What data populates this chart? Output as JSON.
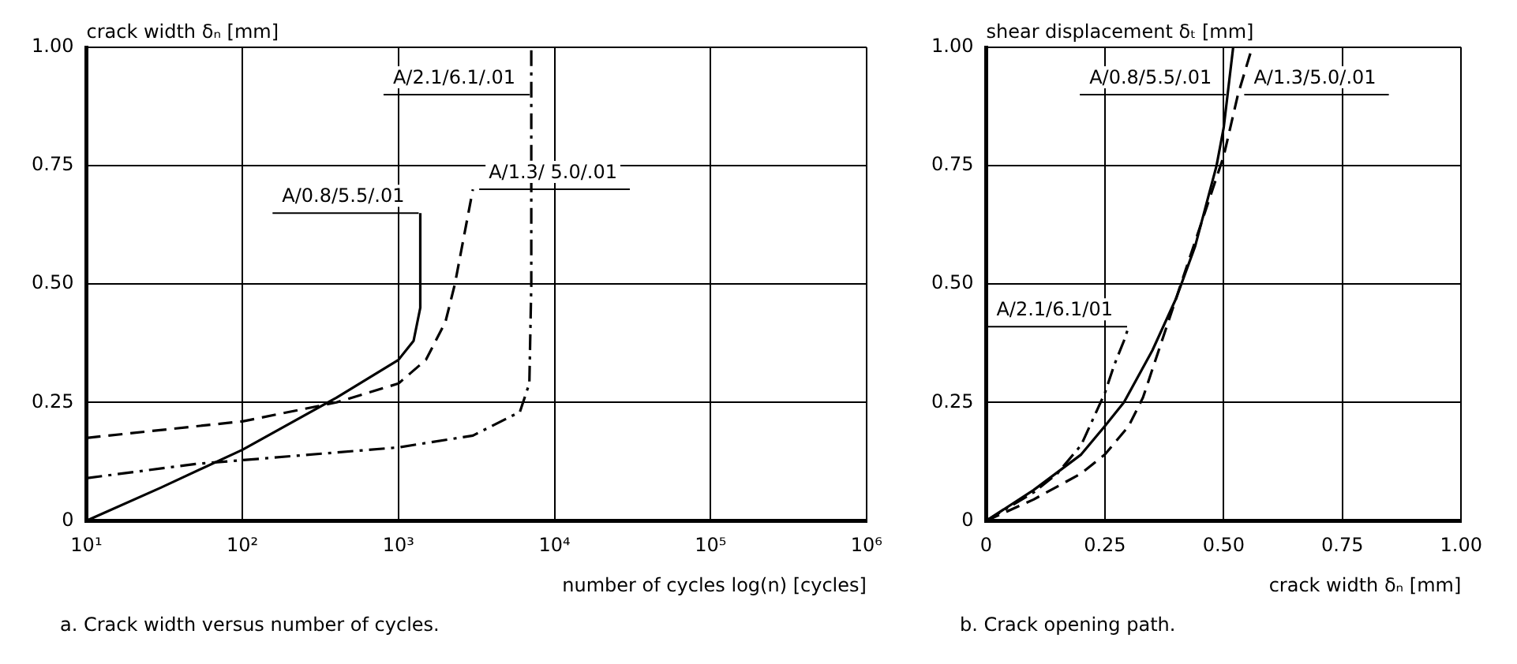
{
  "chart_data": [
    {
      "type": "line",
      "xlabel": "number of cycles log(n) [cycles]",
      "ylabel": "crack width δₙ [mm]",
      "log": "x",
      "xlim": [
        10,
        1000000
      ],
      "xticks": [
        {
          "value": 10,
          "label": "10¹"
        },
        {
          "value": 100,
          "label": "10²"
        },
        {
          "value": 1000,
          "label": "10³"
        },
        {
          "value": 10000,
          "label": "10⁴"
        },
        {
          "value": 100000,
          "label": "10⁵"
        },
        {
          "value": 1000000,
          "label": "10⁶"
        }
      ],
      "ylim": [
        0,
        1
      ],
      "yticks": [
        0,
        {
          "value": 0.25,
          "label": "0.25"
        },
        {
          "value": 0.5,
          "label": "0.50"
        },
        {
          "value": 0.75,
          "label": "0.75"
        },
        {
          "value": 1,
          "label": "1.00"
        }
      ],
      "grid": true,
      "legend": false,
      "marker": "none",
      "annotations": [
        "a. Crack width versus number of cycles."
      ],
      "series": [
        {
          "name": "A/0.8/5.5/.01",
          "color": "#000000",
          "line_style": "solid",
          "x": [
            10,
            30,
            100,
            400,
            1000,
            1250,
            1380,
            1380
          ],
          "values": [
            0,
            0.07,
            0.15,
            0.26,
            0.34,
            0.38,
            0.45,
            0.65
          ]
        },
        {
          "name": "A/1.3/ 5.0/.01",
          "color": "#000000",
          "line_style": "dashed",
          "x": [
            10,
            100,
            400,
            1000,
            1500,
            2000,
            2300,
            3000
          ],
          "values": [
            0.175,
            0.21,
            0.25,
            0.29,
            0.34,
            0.42,
            0.5,
            0.7
          ]
        },
        {
          "name": "A/2.1/6.1/.01",
          "color": "#000000",
          "line_style": "dashdot",
          "x": [
            10,
            50,
            1000,
            3000,
            6000,
            6900,
            7100,
            7100
          ],
          "values": [
            0.09,
            0.12,
            0.155,
            0.18,
            0.23,
            0.29,
            0.5,
            1
          ]
        }
      ]
    },
    {
      "type": "line",
      "xlabel": "crack width δₙ [mm]",
      "ylabel": "shear displacement δₜ [mm]",
      "xlim": [
        0,
        1
      ],
      "xticks": [
        0,
        {
          "value": 0.25,
          "label": "0.25"
        },
        {
          "value": 0.5,
          "label": "0.50"
        },
        {
          "value": 0.75,
          "label": "0.75"
        },
        {
          "value": 1,
          "label": "1.00"
        }
      ],
      "ylim": [
        0,
        1
      ],
      "yticks": [
        0,
        {
          "value": 0.25,
          "label": "0.25"
        },
        {
          "value": 0.5,
          "label": "0.50"
        },
        {
          "value": 0.75,
          "label": "0.75"
        },
        {
          "value": 1,
          "label": "1.00"
        }
      ],
      "grid": true,
      "legend": false,
      "marker": "none",
      "annotations": [
        "b. Crack opening path."
      ],
      "series": [
        {
          "name": "A/0.8/5.5/.01",
          "color": "#000000",
          "line_style": "solid",
          "x": [
            0,
            0.1,
            0.2,
            0.25,
            0.29,
            0.35,
            0.4,
            0.44,
            0.485,
            0.5,
            0.52
          ],
          "values": [
            0,
            0.065,
            0.14,
            0.2,
            0.25,
            0.36,
            0.47,
            0.58,
            0.75,
            0.83,
            1
          ]
        },
        {
          "name": "A/1.3/5.0/.01",
          "color": "#000000",
          "line_style": "dashed",
          "x": [
            0,
            0.1,
            0.2,
            0.25,
            0.3,
            0.33,
            0.36,
            0.4,
            0.45,
            0.5,
            0.53,
            0.56
          ],
          "values": [
            0,
            0.045,
            0.1,
            0.14,
            0.2,
            0.26,
            0.35,
            0.47,
            0.62,
            0.77,
            0.9,
            1
          ]
        },
        {
          "name": "A/2.1/6.1/01",
          "color": "#000000",
          "line_style": "dashdot",
          "x": [
            0,
            0.1,
            0.15,
            0.2,
            0.25,
            0.27,
            0.29,
            0.3
          ],
          "values": [
            0,
            0.06,
            0.1,
            0.16,
            0.27,
            0.33,
            0.38,
            0.41
          ]
        }
      ]
    }
  ]
}
